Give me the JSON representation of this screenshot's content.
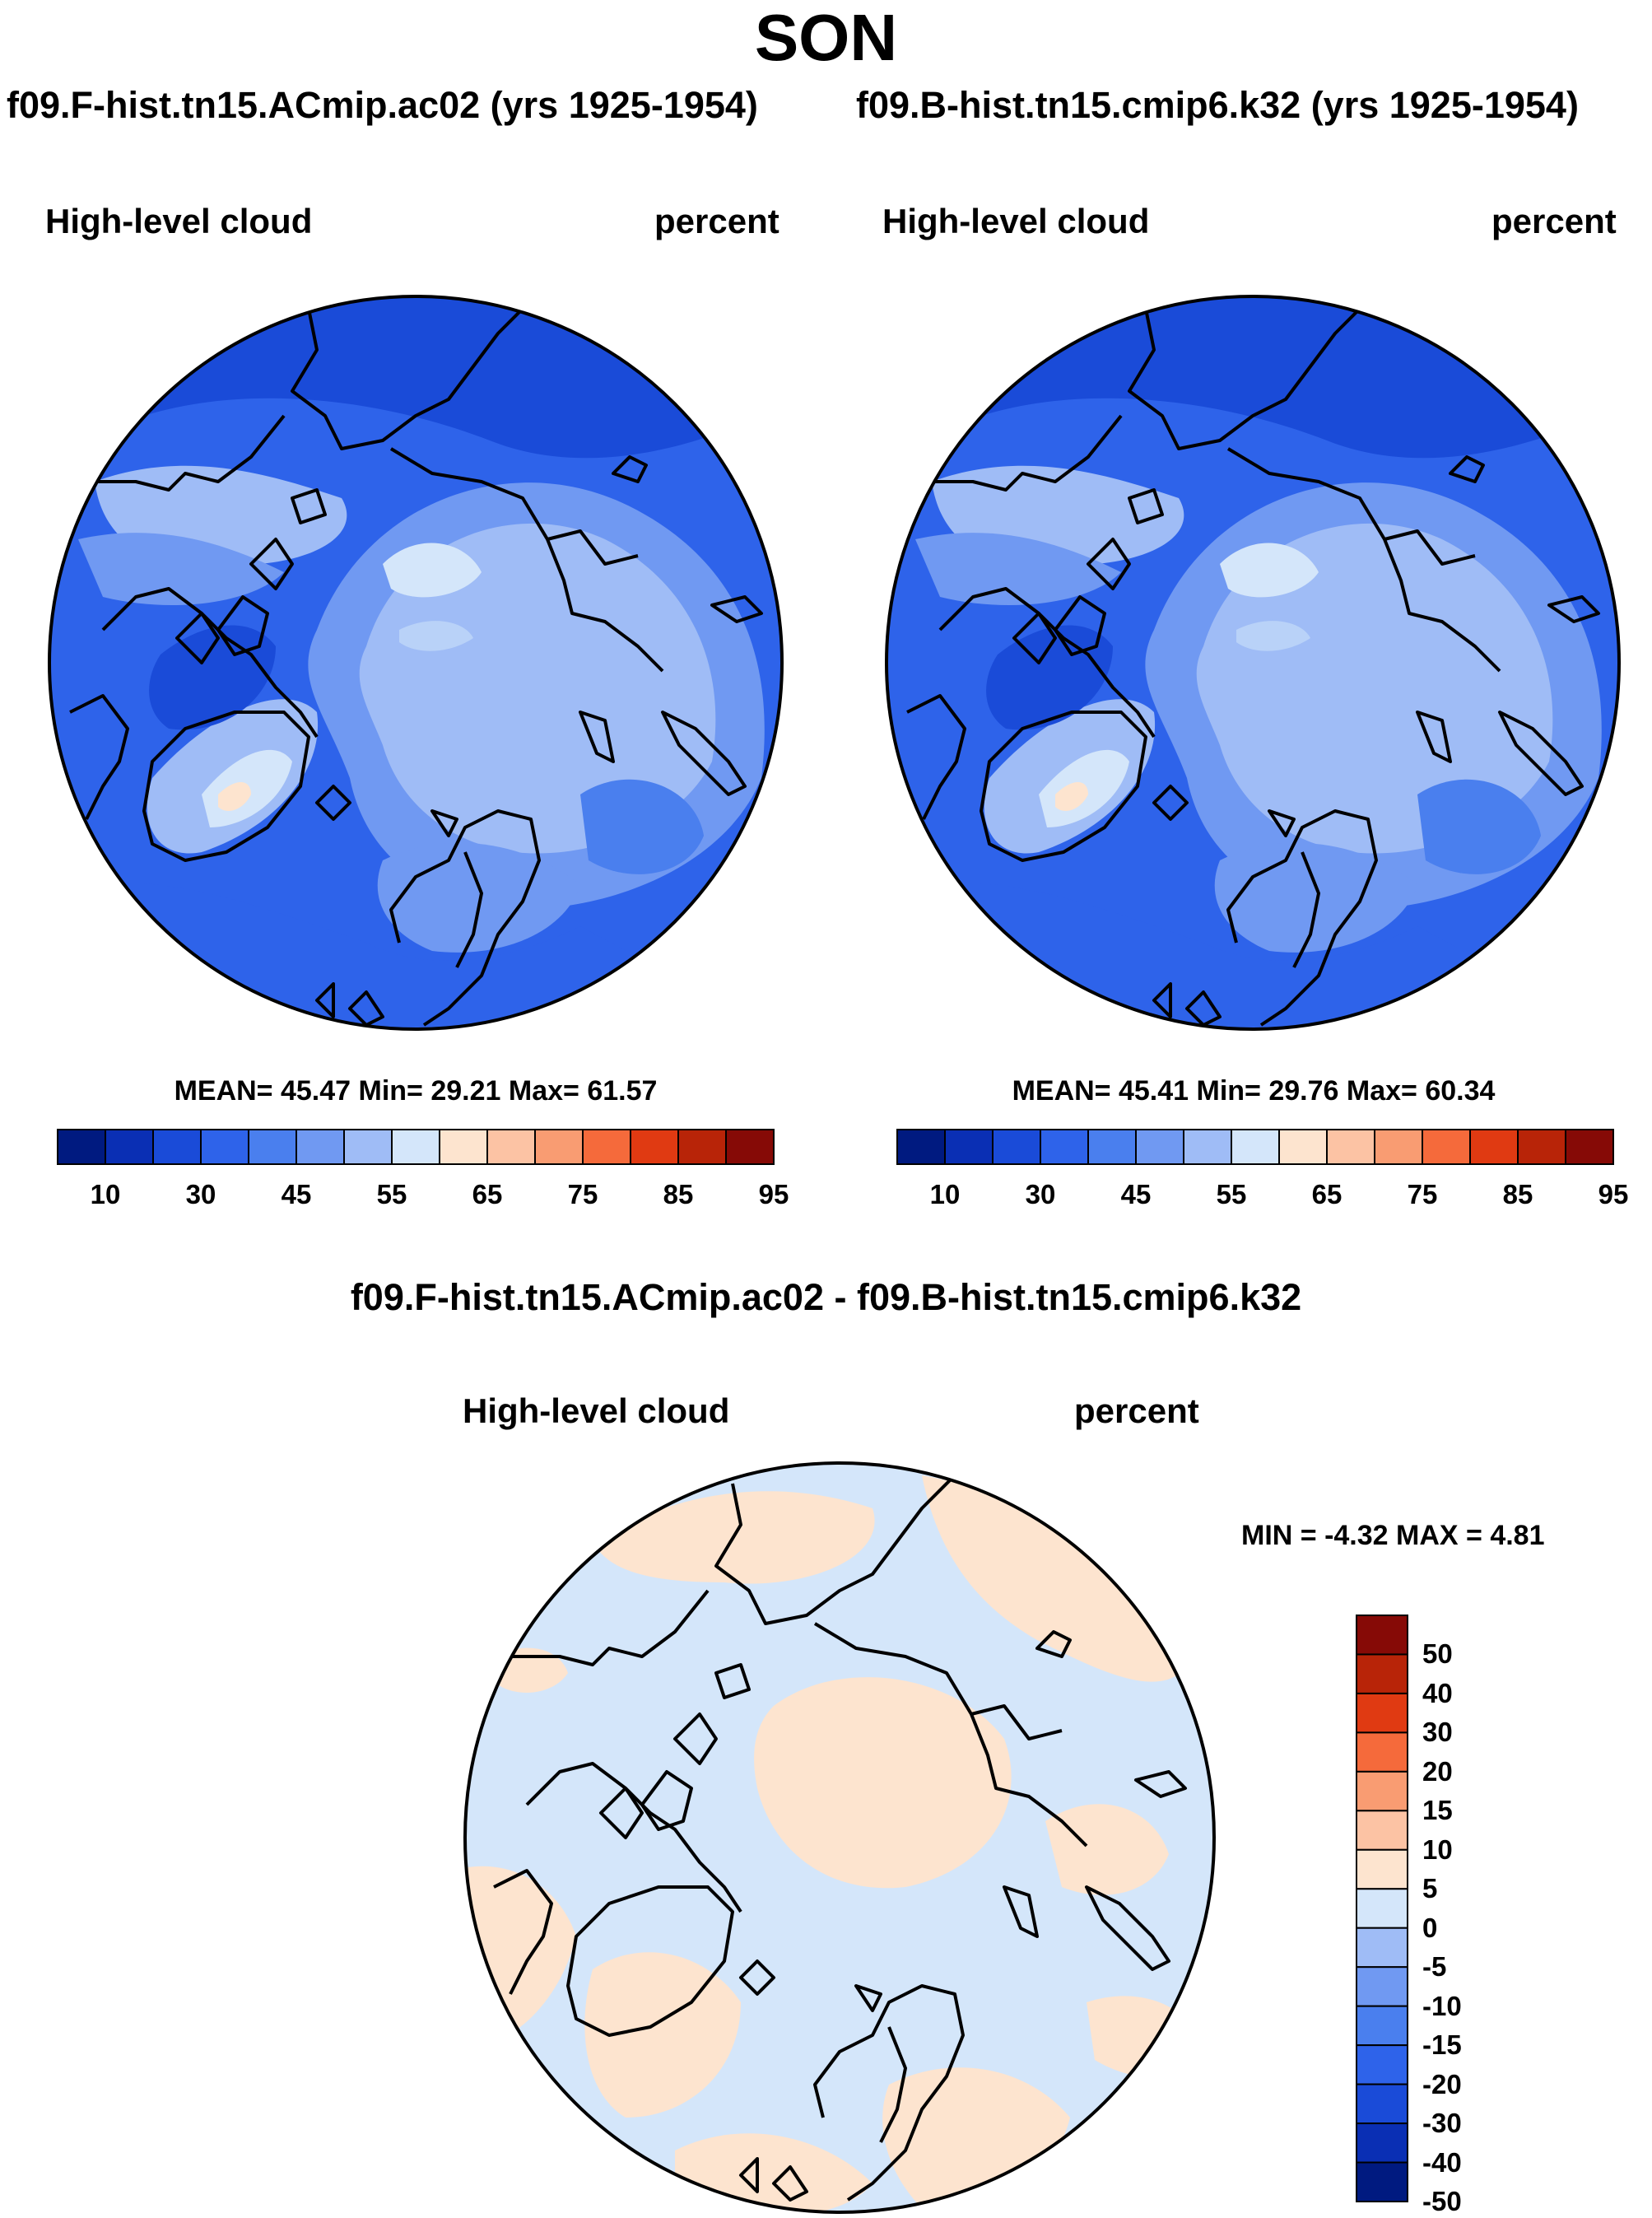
{
  "title": "SON",
  "panels": [
    {
      "case_title": "f09.F-hist.tn15.ACmip.ac02 (yrs 1925-1954)",
      "variable": "High-level cloud",
      "units": "percent",
      "stats": "MEAN=  45.47  Min=  29.21  Max=  61.57"
    },
    {
      "case_title": "f09.B-hist.tn15.cmip6.k32 (yrs 1925-1954)",
      "variable": "High-level cloud",
      "units": "percent",
      "stats": "MEAN=  45.41  Min=  29.76  Max=  60.34"
    }
  ],
  "difference": {
    "title": "f09.F-hist.tn15.ACmip.ac02 - f09.B-hist.tn15.cmip6.k32",
    "variable": "High-level cloud",
    "units": "percent",
    "stats": "MIN =  -4.32 MAX =   4.81"
  },
  "colorbar_main": {
    "colors": [
      "#001a80",
      "#0a2fb4",
      "#1a4bd8",
      "#2e63ea",
      "#4a7fee",
      "#7099f2",
      "#9fbcf6",
      "#d4e6fa",
      "#fde4cf",
      "#fcc3a4",
      "#f99c72",
      "#f56a3b",
      "#e03a12",
      "#b82408",
      "#860a06"
    ],
    "tick_labels": [
      "10",
      "30",
      "45",
      "55",
      "65",
      "75",
      "85",
      "95"
    ]
  },
  "colorbar_diff": {
    "colors": [
      "#860a06",
      "#b82408",
      "#e03a12",
      "#f56a3b",
      "#f99c72",
      "#fcc3a4",
      "#fde4cf",
      "#d4e6fa",
      "#9fbcf6",
      "#7099f2",
      "#4a7fee",
      "#2e63ea",
      "#1a4bd8",
      "#0a2fb4",
      "#001a80"
    ],
    "tick_labels": [
      "50",
      "40",
      "30",
      "20",
      "15",
      "10",
      "5",
      "0",
      "-5",
      "-10",
      "-15",
      "-20",
      "-30",
      "-40",
      "-50"
    ]
  }
}
